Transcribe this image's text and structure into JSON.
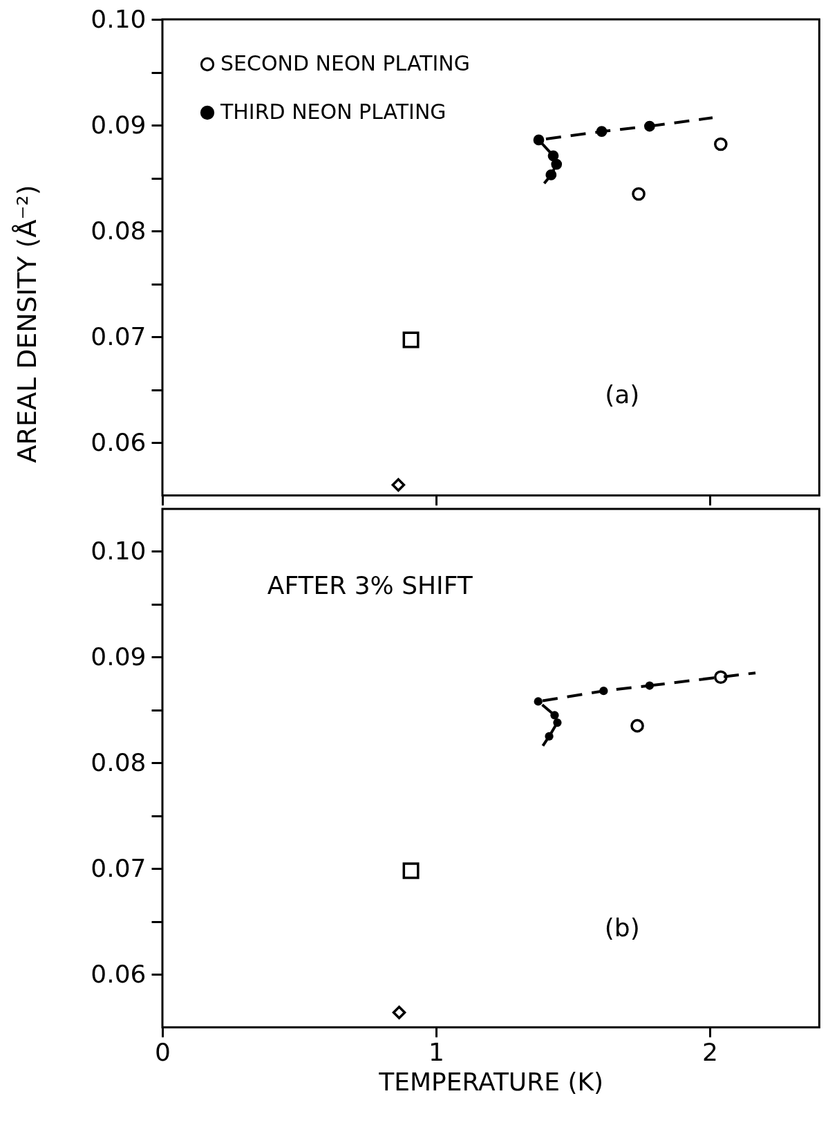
{
  "chart_data": [
    {
      "type": "scatter",
      "ylabel": "AREAL DENSITY (Å⁻²)",
      "annotations": [
        "(a)"
      ],
      "legend": "top left",
      "tick_labels": "y",
      "xlim": [
        0,
        2.4
      ],
      "xticks": [
        0,
        1,
        2
      ],
      "ylim": [
        0.055,
        0.1
      ],
      "yticks": [
        0.06,
        {
          "value": 0.065,
          "label": null
        },
        0.07,
        {
          "value": 0.075,
          "label": null
        },
        0.08,
        {
          "value": 0.085,
          "label": null
        },
        0.09,
        {
          "value": 0.095,
          "label": null
        },
        {
          "value": 0.1,
          "label": "0.10"
        }
      ],
      "series": [
        {
          "type": "scatter",
          "name": "SECOND NEON PLATING",
          "color": "#000000",
          "marker": "circle",
          "x": [
            1.74,
            2.04
          ],
          "values": [
            0.0835,
            0.0882
          ]
        },
        {
          "type": "line",
          "name": "THIRD NEON PLATING",
          "color": "#000000",
          "marker": "circle",
          "line_style": "dashed",
          "x": [
            1.42,
            1.44,
            1.428,
            1.375,
            1.605,
            1.78
          ],
          "values": [
            0.0853,
            0.0863,
            0.0871,
            0.0886,
            0.0894,
            0.0899
          ]
        },
        {
          "type": "line",
          "color": "#000000",
          "marker": "none",
          "line_style": "dashed",
          "x": [
            1.395,
            1.42
          ],
          "values": [
            0.0845,
            0.0853
          ]
        },
        {
          "type": "line",
          "color": "#000000",
          "marker": "none",
          "line_style": "dashed",
          "x": [
            1.78,
            2.01
          ],
          "values": [
            0.0899,
            0.0907
          ]
        },
        {
          "type": "scatter",
          "color": "#000000",
          "marker": "square",
          "x": [
            0.908
          ],
          "values": [
            0.0697
          ]
        },
        {
          "type": "scatter",
          "color": "#000000",
          "marker": "diamond",
          "x": [
            0.862
          ],
          "values": [
            0.056
          ]
        }
      ]
    },
    {
      "type": "scatter",
      "xlabel": "TEMPERATURE (K)",
      "annotations": [
        "AFTER 3% SHIFT",
        "(b)"
      ],
      "xlim": [
        0,
        2.4
      ],
      "xticks": [
        0,
        1,
        2
      ],
      "ylim": [
        0.055,
        0.104
      ],
      "yticks": [
        0.06,
        {
          "value": 0.065,
          "label": null
        },
        0.07,
        {
          "value": 0.075,
          "label": null
        },
        0.08,
        {
          "value": 0.085,
          "label": null
        },
        0.09,
        {
          "value": 0.095,
          "label": null
        },
        {
          "value": 0.1,
          "label": "0.10"
        }
      ],
      "series": [
        {
          "type": "scatter",
          "color": "#000000",
          "marker": "circle",
          "x": [
            1.735,
            2.04
          ],
          "values": [
            0.0835,
            0.0881
          ]
        },
        {
          "type": "line",
          "color": "#000000",
          "marker": "circle",
          "line_style": "dashed",
          "x": [
            1.413,
            1.443,
            1.433,
            1.373,
            1.612,
            1.78
          ],
          "values": [
            0.0825,
            0.0838,
            0.0845,
            0.0858,
            0.0868,
            0.0873
          ]
        },
        {
          "type": "line",
          "color": "#000000",
          "marker": "none",
          "line_style": "dashed",
          "x": [
            1.39,
            1.413
          ],
          "values": [
            0.0816,
            0.0825
          ]
        },
        {
          "type": "line",
          "color": "#000000",
          "marker": "none",
          "line_style": "dashed",
          "x": [
            1.78,
            2.167
          ],
          "values": [
            0.0873,
            0.0885
          ]
        },
        {
          "type": "scatter",
          "color": "#000000",
          "marker": "square",
          "x": [
            0.908
          ],
          "values": [
            0.0698
          ]
        },
        {
          "type": "scatter",
          "color": "#000000",
          "marker": "diamond",
          "x": [
            0.865
          ],
          "values": [
            0.0564
          ]
        }
      ]
    }
  ]
}
